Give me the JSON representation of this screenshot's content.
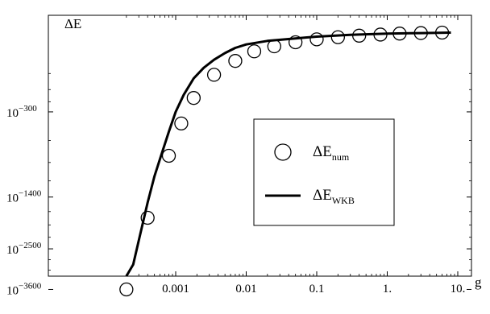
{
  "chart_data": {
    "type": "scatter",
    "title": "",
    "xlabel": "g",
    "ylabel": "ΔE",
    "x_scale": "log",
    "y_scale": "log",
    "xlim": [
      0.00015,
      10
    ],
    "ylim_log10": [
      -4000,
      10
    ],
    "grid": false,
    "legend_position": "center-right",
    "x_ticks": [
      {
        "value": 0.001,
        "label": "0.001"
      },
      {
        "value": 0.01,
        "label": "0.01"
      },
      {
        "value": 0.1,
        "label": "0.1"
      },
      {
        "value": 1,
        "label": "1."
      },
      {
        "value": 10,
        "label": "10."
      }
    ],
    "y_ticks": [
      {
        "value_log10": -300,
        "base": "10",
        "exponent": "−300"
      },
      {
        "value_log10": -1400,
        "base": "10",
        "exponent": "−1400"
      },
      {
        "value_log10": -2500,
        "base": "10",
        "exponent": "−2500"
      },
      {
        "value_log10": -3600,
        "base": "10",
        "exponent": "−3600"
      }
    ],
    "series": [
      {
        "name": "ΔE_num",
        "legend_main": "ΔE",
        "legend_sub": "num",
        "style": "markers",
        "marker": "open-circle",
        "x": [
          0.0002,
          0.0004,
          0.0008,
          0.0012,
          0.0018,
          0.0035,
          0.007,
          0.013,
          0.025,
          0.05,
          0.1,
          0.2,
          0.4,
          0.8,
          1.5,
          3,
          6
        ],
        "y_log10": [
          -3600,
          -1800,
          -760,
          -400,
          -200,
          -80,
          -35,
          -15,
          -8,
          -4,
          -2,
          -1,
          -0.5,
          -0.25,
          -0.1,
          -0.05,
          -0.02
        ]
      },
      {
        "name": "ΔE_WKB",
        "legend_main": "ΔE",
        "legend_sub": "WKB",
        "style": "line",
        "x": [
          0.0002,
          0.00025,
          0.0003,
          0.0004,
          0.0005,
          0.0006,
          0.0008,
          0.001,
          0.0013,
          0.0018,
          0.0025,
          0.0035,
          0.005,
          0.007,
          0.01,
          0.02,
          0.05,
          0.1,
          0.3,
          1,
          3,
          8
        ],
        "y_log10": [
          -3800,
          -2900,
          -2300,
          -1500,
          -1050,
          -800,
          -480,
          -300,
          -180,
          -95,
          -55,
          -32,
          -18,
          -10,
          -6,
          -3,
          -1.5,
          -0.8,
          -0.3,
          -0.1,
          -0.05,
          -0.02
        ]
      }
    ]
  }
}
